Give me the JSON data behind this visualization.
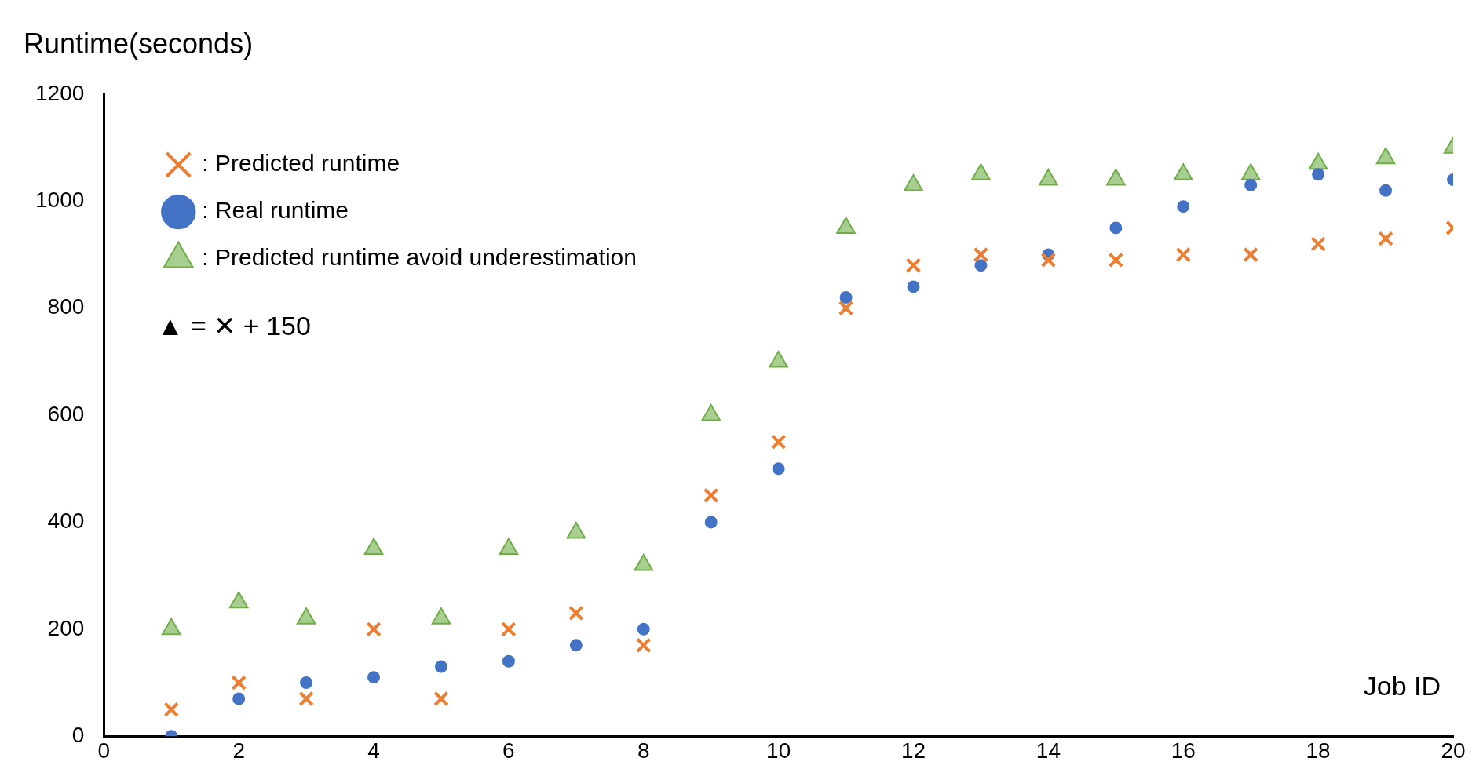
{
  "chart_data": {
    "type": "scatter",
    "ylabel": "Runtime(seconds)",
    "xlabel": "Job ID",
    "x": [
      1,
      2,
      3,
      4,
      5,
      6,
      7,
      8,
      9,
      10,
      11,
      12,
      13,
      14,
      15,
      16,
      17,
      18,
      19,
      20
    ],
    "series": [
      {
        "name": ": Real runtime",
        "color": "#4472c4",
        "marker": "circle",
        "values": [
          0,
          70,
          100,
          110,
          130,
          140,
          170,
          200,
          400,
          500,
          820,
          840,
          880,
          900,
          950,
          990,
          1030,
          1050,
          1020,
          1040
        ]
      },
      {
        "name": ": Predicted runtime",
        "color": "#ed7d31",
        "marker": "cross",
        "values": [
          50,
          100,
          70,
          200,
          70,
          200,
          230,
          170,
          450,
          550,
          800,
          880,
          900,
          890,
          890,
          900,
          900,
          920,
          930,
          950
        ]
      },
      {
        "name": ": Predicted runtime avoid underestimation",
        "color": "#70ad47",
        "marker": "triangle",
        "values": [
          200,
          250,
          220,
          350,
          220,
          350,
          380,
          320,
          600,
          700,
          950,
          1030,
          1050,
          1040,
          1040,
          1050,
          1050,
          1070,
          1080,
          1100
        ]
      }
    ],
    "xlim": [
      0,
      20
    ],
    "xticks": [
      0,
      2,
      4,
      6,
      8,
      10,
      12,
      14,
      16,
      18,
      20
    ],
    "ylim": [
      0,
      1200
    ],
    "yticks": [
      0,
      200,
      400,
      600,
      800,
      1000,
      1200
    ],
    "grid": false,
    "legend": "top left",
    "annotations": [
      "▲ = ✕ + 150"
    ]
  }
}
